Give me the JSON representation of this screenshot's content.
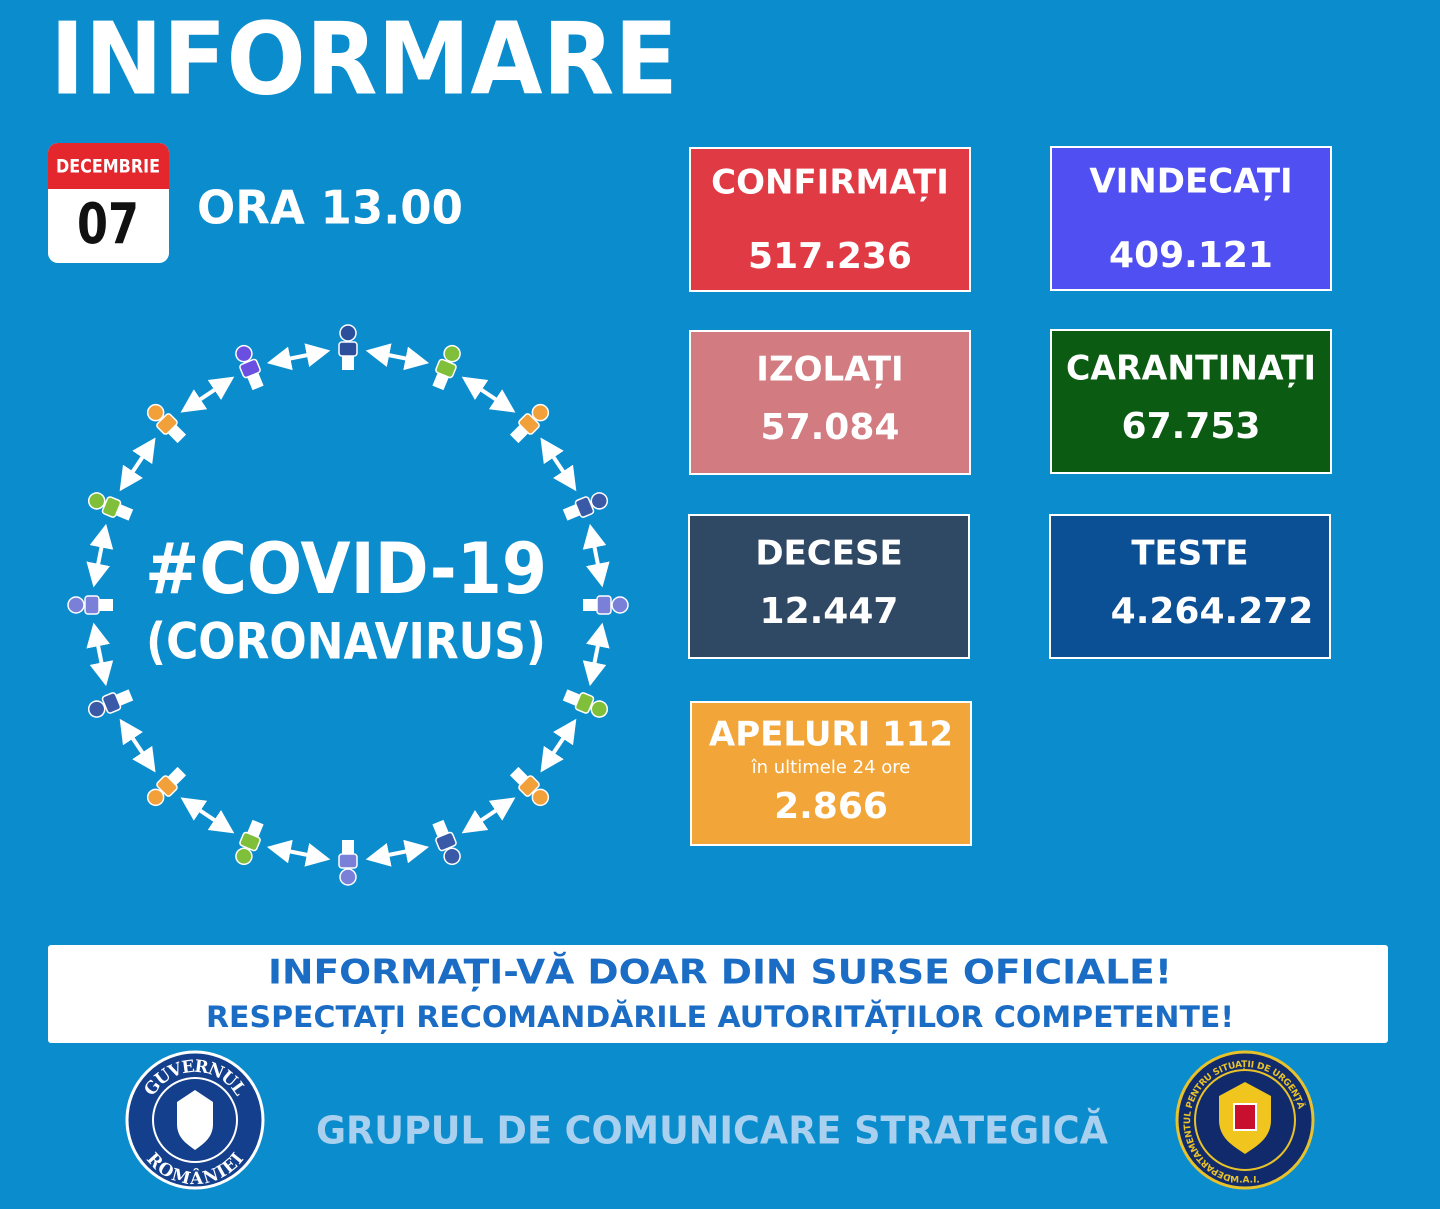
{
  "header": {
    "title": "INFORMARE",
    "date": {
      "month": "DECEMBRIE",
      "day": "07"
    },
    "time": "ORA 13.00"
  },
  "badge": {
    "hashtag": "#COVID-19",
    "subtitle": "(CORONAVIRUS)"
  },
  "stats": [
    {
      "label": "CONFIRMAȚI",
      "value": "517.236"
    },
    {
      "label": "VINDECAȚI",
      "value": "409.121"
    },
    {
      "label": "IZOLAȚI",
      "value": "57.084"
    },
    {
      "label": "CARANTINAȚI",
      "value": "67.753"
    },
    {
      "label": "DECESE",
      "value": "12.447"
    },
    {
      "label": "TESTE",
      "value": "4.264.272"
    },
    {
      "label": "APELURI 112",
      "note": "în ultimele 24 ore",
      "value": "2.866"
    }
  ],
  "banner": {
    "line1": "INFORMAȚI-VĂ DOAR DIN SURSE OFICIALE!",
    "line2": "RESPECTAȚI RECOMANDĂRILE AUTORITĂȚILOR COMPETENTE!"
  },
  "footer": {
    "text": "GRUPUL DE COMUNICARE STRATEGICĂ",
    "left_logo": {
      "top": "GUVERNUL",
      "bottom": "ROMÂNIEI"
    },
    "right_logo": {
      "ring": "DEPARTAMENTUL PENTRU SITUAȚII DE URGENȚĂ",
      "bottom": "M.A.I."
    }
  }
}
